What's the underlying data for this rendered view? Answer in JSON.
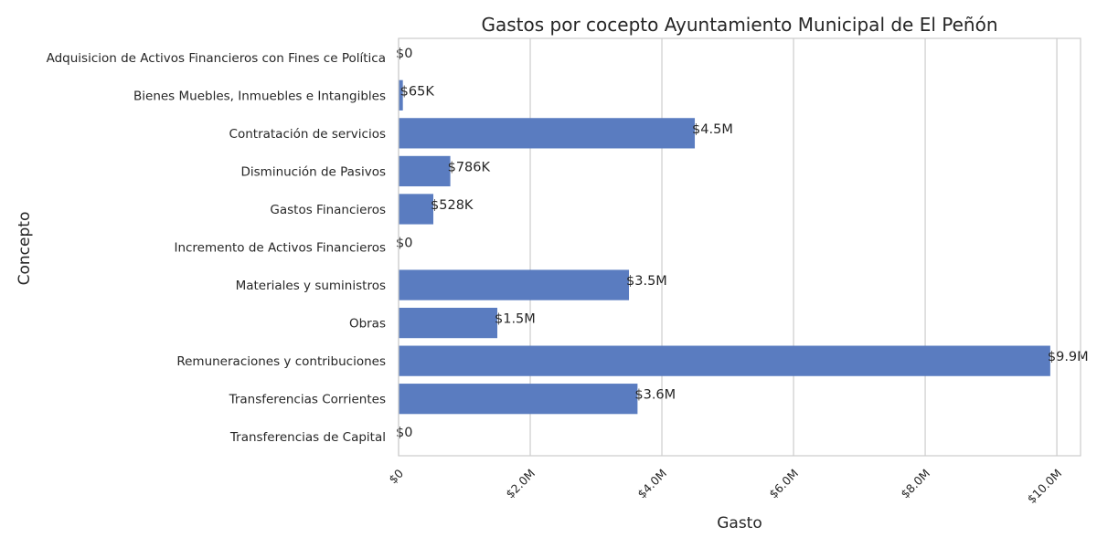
{
  "chart_data": {
    "type": "bar",
    "orientation": "horizontal",
    "title": "Gastos por cocepto Ayuntamiento Municipal de El Peñón",
    "xlabel": "Gasto",
    "ylabel": "Concepto",
    "categories": [
      "Adquisicion de Activos Financieros con Fines ce Política",
      "Bienes Muebles, Inmuebles e Intangibles",
      "Contratación de servicios",
      "Disminución de Pasivos",
      "Gastos Financieros",
      "Incremento de Activos Financieros",
      "Materiales y suministros",
      "Obras",
      "Remuneraciones y contribuciones",
      "Transferencias Corrientes",
      "Transferencias de Capital"
    ],
    "values": [
      0,
      65000,
      4500000,
      786000,
      528000,
      0,
      3500000,
      1500000,
      9900000,
      3630000,
      0
    ],
    "data_labels": [
      "$0",
      "$65K",
      "$4.5M",
      "$786K",
      "$528K",
      "$0",
      "$3.5M",
      "$1.5M",
      "$9.9M",
      "$3.6M",
      "$0"
    ],
    "xlim": [
      0,
      10360000
    ],
    "xticks": [
      0,
      2000000,
      4000000,
      6000000,
      8000000,
      10000000
    ],
    "xtick_labels": [
      "$0",
      "$2.0M",
      "$4.0M",
      "$6.0M",
      "$8.0M",
      "$10.0M"
    ],
    "grid": true,
    "bar_color": "#5a7cc0"
  }
}
